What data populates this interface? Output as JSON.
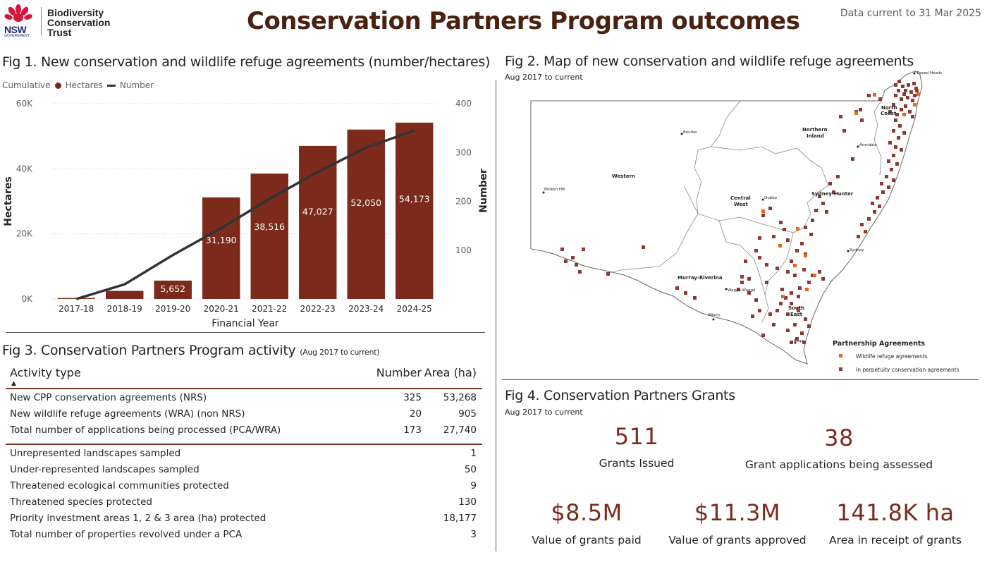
{
  "header": {
    "logo_text_1": "Biodiversity",
    "logo_text_2": "Conservation",
    "logo_text_3": "Trust",
    "nsw_word": "NSW",
    "nsw_gov": "GOVERNMENT",
    "title": "Conservation Partners Program outcomes",
    "data_current": "Data current to 31 Mar 2025"
  },
  "fig1": {
    "title": "Fig 1. New conservation and wildlife refuge agreements (number/hectares)",
    "legend_prefix": "Cumulative",
    "legend_hectares": "Hectares",
    "legend_number": "Number"
  },
  "chart_data": {
    "type": "bar",
    "categories": [
      "2017-18",
      "2018-19",
      "2019-20",
      "2020-21",
      "2021-22",
      "2022-23",
      "2023-24",
      "2024-25"
    ],
    "series": [
      {
        "name": "Hectares",
        "type": "bar",
        "axis": "left",
        "values": [
          300,
          2500,
          5652,
          31190,
          38516,
          47027,
          52050,
          54173
        ],
        "labels": [
          "",
          "",
          "5,652",
          "31,190",
          "38,516",
          "47,027",
          "52,050",
          "54,173"
        ]
      },
      {
        "name": "Number",
        "type": "line",
        "axis": "right",
        "values": [
          0,
          30,
          90,
          145,
          205,
          260,
          310,
          345
        ]
      }
    ],
    "xlabel": "Financial Year",
    "ylabel": "Hectares",
    "y2label": "Number",
    "ylim": [
      0,
      60000
    ],
    "y2lim": [
      0,
      400
    ],
    "yticks": [
      "0K",
      "20K",
      "40K",
      "60K"
    ],
    "y2ticks": [
      "100",
      "200",
      "300",
      "400"
    ],
    "colors": {
      "bar": "#7b2a1c",
      "line": "#333333"
    },
    "grid": true,
    "legend": "top-left"
  },
  "fig2": {
    "title": "Fig 2. Map of new conservation and wildlife refuge agreements",
    "subtitle": "Aug 2017 to current",
    "regions": [
      "North Coast",
      "Northern Inland",
      "Western",
      "Central West",
      "Sydney-Hunter",
      "Murray-Riverina",
      "South East"
    ],
    "region_lines": {
      "nc1": "North",
      "nc2": "Coast",
      "ni1": "Northern",
      "ni2": "Inland",
      "cw1": "Central",
      "cw2": "West",
      "se1": "South",
      "se2": "East"
    },
    "region_western": "Western",
    "region_sydney_hunter": "Sydney-Hunter",
    "region_murray": "Murray-Riverina",
    "towns": {
      "tweed": "Tweed Heads",
      "bourke": "Bourke",
      "armidale": "Armidale",
      "broken_hill": "Broken Hill",
      "dubbo": "Dubbo",
      "sydney": "Sydney",
      "wagga": "Wagga Wagga",
      "albury": "Albury",
      "bega": "Bega"
    },
    "legend_title": "Partnership Agreements",
    "legend_wra": "Wildlife refuge agreements",
    "legend_perp": "In perpetuity conservation agreements",
    "colors": {
      "wra": "#e8671b",
      "perp": "#8b3a36"
    }
  },
  "fig3": {
    "title": "Fig 3. Conservation Partners Program activity",
    "subtitle": "(Aug 2017 to current)",
    "col_activity": "Activity type",
    "col_number": "Number",
    "col_area": "Area (ha)",
    "group1": [
      {
        "activity": "New CPP conservation agreements (NRS)",
        "number": "325",
        "area": "53,268"
      },
      {
        "activity": "New wildlife refuge agreements (WRA) (non NRS)",
        "number": "20",
        "area": "905"
      },
      {
        "activity": "Total number of applications being processed (PCA/WRA)",
        "number": "173",
        "area": "27,740"
      }
    ],
    "group2": [
      {
        "activity": "Unrepresented landscapes sampled",
        "area": "1"
      },
      {
        "activity": "Under-represented landscapes sampled",
        "area": "50"
      },
      {
        "activity": "Threatened ecological communities protected",
        "area": "9"
      },
      {
        "activity": "Threatened species protected",
        "area": "130"
      },
      {
        "activity": "Priority investment areas 1, 2 & 3 area (ha) protected",
        "area": "18,177"
      },
      {
        "activity": "Total number of properties revolved under a PCA",
        "area": "3"
      }
    ]
  },
  "fig4": {
    "title": "Fig 4. Conservation Partners Grants",
    "subtitle": "Aug 2017 to current",
    "kpis": [
      {
        "value": "511",
        "label": "Grants Issued"
      },
      {
        "value": "38",
        "label": "Grant applications being assessed"
      },
      {
        "value": "$8.5M",
        "label": "Value of grants paid"
      },
      {
        "value": "$11.3M",
        "label": "Value of grants approved"
      },
      {
        "value": "141.8K ha",
        "label": "Area in receipt of grants"
      }
    ]
  }
}
